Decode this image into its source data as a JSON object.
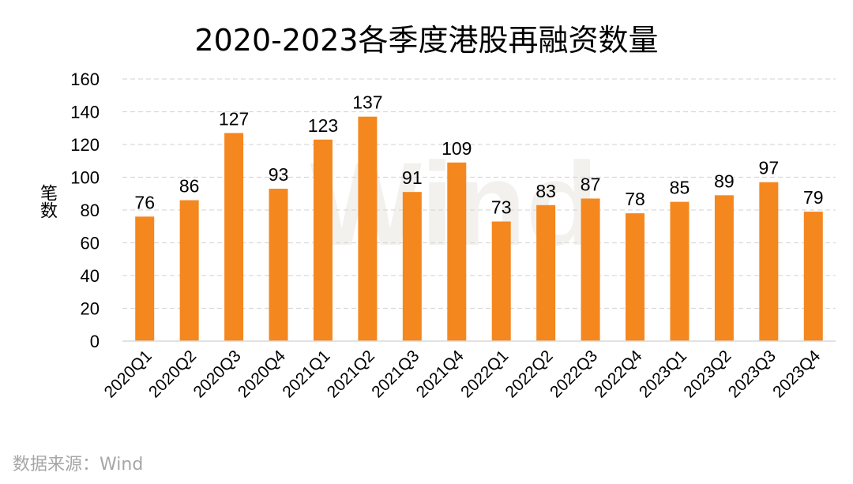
{
  "chart_data": {
    "type": "bar",
    "title": "2020-2023各季度港股再融资数量",
    "xlabel": "",
    "ylabel": "笔数",
    "categories": [
      "2020Q1",
      "2020Q2",
      "2020Q3",
      "2020Q4",
      "2021Q1",
      "2021Q2",
      "2021Q3",
      "2021Q4",
      "2022Q1",
      "2022Q2",
      "2022Q3",
      "2022Q4",
      "2023Q1",
      "2023Q2",
      "2023Q3",
      "2023Q4"
    ],
    "values": [
      76,
      86,
      127,
      93,
      123,
      137,
      91,
      109,
      73,
      83,
      87,
      78,
      85,
      89,
      97,
      79
    ],
    "ylim": [
      0,
      160
    ],
    "yticks": [
      0,
      20,
      40,
      60,
      80,
      100,
      120,
      140,
      160
    ],
    "grid": true,
    "data_labels": true,
    "bar_color": "#F5871F"
  },
  "watermark": "Wind",
  "source": "数据来源：Wind"
}
